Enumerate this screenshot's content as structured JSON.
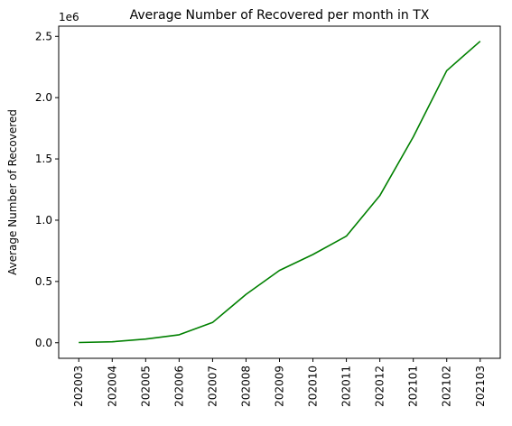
{
  "chart_data": {
    "type": "line",
    "title": "Average Number of Recovered per month in TX",
    "xlabel": "",
    "ylabel": "Average Number of Recovered",
    "y_offset_label": "1e6",
    "categories": [
      "202003",
      "202004",
      "202005",
      "202006",
      "202007",
      "202008",
      "202009",
      "202010",
      "202011",
      "202012",
      "202101",
      "202102",
      "202103"
    ],
    "series": [
      {
        "color": "#008000",
        "values": [
          2000,
          8000,
          30000,
          65000,
          165000,
          395000,
          590000,
          720000,
          870000,
          1200000,
          1680000,
          2220000,
          2460000
        ]
      }
    ],
    "ylim": [
      -127000,
      2583000
    ],
    "yticks": [
      0,
      500000,
      1000000,
      1500000,
      2000000,
      2500000
    ],
    "ytick_labels": [
      "0.0",
      "0.5",
      "1.0",
      "1.5",
      "2.0",
      "2.5"
    ],
    "grid": false,
    "legend": "none"
  }
}
